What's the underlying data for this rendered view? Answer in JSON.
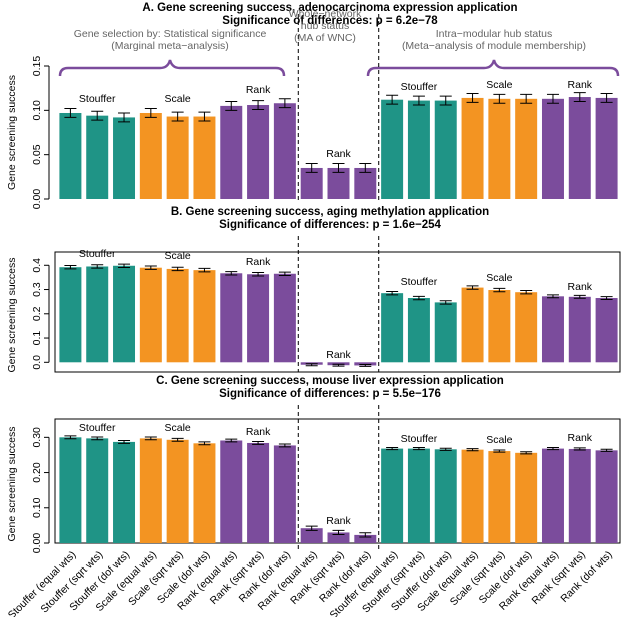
{
  "chart_data": [
    {
      "type": "bar",
      "title": "A. Gene screening success, adenocarcinoma expression application",
      "subtitle": "Significance of differences: p = 6.2e−78",
      "ylabel": "Gene screening success",
      "headers": [
        [
          "Gene selection by: Statistical significance",
          "(Marginal meta−analysis)"
        ],
        [
          "Whole−network",
          "hub status",
          "(MA of WNC)"
        ],
        [
          "Intra−modular hub status",
          "(Meta−analysis of module membership)"
        ]
      ],
      "annotations": [
        {
          "text": "Stouffer",
          "color": "#1f9486"
        },
        {
          "text": "Scale",
          "color": "#f39422"
        },
        {
          "text": "Rank",
          "color": "#7b4c9c"
        },
        {
          "text": "Rank",
          "color": "#7b4c9c"
        },
        {
          "text": "Stouffer",
          "color": "#1f9486"
        },
        {
          "text": "Scale",
          "color": "#f39422"
        },
        {
          "text": "Rank",
          "color": "#7b4c9c"
        }
      ],
      "values": [
        0.097,
        0.094,
        0.092,
        0.097,
        0.093,
        0.093,
        0.105,
        0.106,
        0.108,
        0.035,
        0.035,
        0.035,
        0.112,
        0.111,
        0.111,
        0.114,
        0.113,
        0.113,
        0.113,
        0.115,
        0.114
      ],
      "errors": [
        0.005,
        0.005,
        0.005,
        0.005,
        0.005,
        0.005,
        0.005,
        0.005,
        0.005,
        0.005,
        0.005,
        0.005,
        0.005,
        0.005,
        0.005,
        0.005,
        0.005,
        0.005,
        0.005,
        0.005,
        0.005
      ],
      "colors": [
        "#1f9486",
        "#1f9486",
        "#1f9486",
        "#f39422",
        "#f39422",
        "#f39422",
        "#7b4c9c",
        "#7b4c9c",
        "#7b4c9c",
        "#7b4c9c",
        "#7b4c9c",
        "#7b4c9c",
        "#1f9486",
        "#1f9486",
        "#1f9486",
        "#f39422",
        "#f39422",
        "#f39422",
        "#7b4c9c",
        "#7b4c9c",
        "#7b4c9c"
      ],
      "ylim": [
        0,
        0.15
      ],
      "yticks": [
        {
          "value": 0,
          "label": "0.00"
        },
        {
          "value": 0.05,
          "label": "0.05"
        },
        {
          "value": 0.1,
          "label": "0.10"
        },
        {
          "value": 0.15,
          "label": "0.15"
        }
      ]
    },
    {
      "type": "bar",
      "title": "B. Gene screening success, aging methylation application",
      "subtitle": "Significance of differences: p = 1.6e−254",
      "ylabel": "Gene screening success",
      "annotations": [
        {
          "text": "Stouffer",
          "color": "#1f9486"
        },
        {
          "text": "Scale",
          "color": "#f39422"
        },
        {
          "text": "Rank",
          "color": "#7b4c9c"
        },
        {
          "text": "Rank",
          "color": "#7b4c9c"
        },
        {
          "text": "Stouffer",
          "color": "#1f9486"
        },
        {
          "text": "Scale",
          "color": "#f39422"
        },
        {
          "text": "Rank",
          "color": "#7b4c9c"
        }
      ],
      "values": [
        0.392,
        0.395,
        0.398,
        0.39,
        0.385,
        0.38,
        0.367,
        0.363,
        0.365,
        -0.01,
        -0.012,
        -0.013,
        0.285,
        0.265,
        0.247,
        0.308,
        0.298,
        0.289,
        0.272,
        0.27,
        0.265
      ],
      "errors": [
        0.007,
        0.007,
        0.007,
        0.007,
        0.007,
        0.007,
        0.007,
        0.007,
        0.007,
        0.004,
        0.004,
        0.004,
        0.007,
        0.007,
        0.007,
        0.007,
        0.007,
        0.007,
        0.006,
        0.006,
        0.006
      ],
      "colors": [
        "#1f9486",
        "#1f9486",
        "#1f9486",
        "#f39422",
        "#f39422",
        "#f39422",
        "#7b4c9c",
        "#7b4c9c",
        "#7b4c9c",
        "#7b4c9c",
        "#7b4c9c",
        "#7b4c9c",
        "#1f9486",
        "#1f9486",
        "#1f9486",
        "#f39422",
        "#f39422",
        "#f39422",
        "#7b4c9c",
        "#7b4c9c",
        "#7b4c9c"
      ],
      "ylim": [
        -0.04,
        0.43
      ],
      "yticks": [
        {
          "value": 0,
          "label": "0.0"
        },
        {
          "value": 0.1,
          "label": "0.1"
        },
        {
          "value": 0.2,
          "label": "0.2"
        },
        {
          "value": 0.3,
          "label": "0.3"
        },
        {
          "value": 0.4,
          "label": "0.4"
        }
      ]
    },
    {
      "type": "bar",
      "title": "C. Gene screening success, mouse liver expression application",
      "subtitle": "Significance of differences: p = 5.5e−176",
      "ylabel": "Gene screening success",
      "annotations": [
        {
          "text": "Stouffer",
          "color": "#1f9486"
        },
        {
          "text": "Scale",
          "color": "#f39422"
        },
        {
          "text": "Rank",
          "color": "#7b4c9c"
        },
        {
          "text": "Rank",
          "color": "#7b4c9c"
        },
        {
          "text": "Stouffer",
          "color": "#1f9486"
        },
        {
          "text": "Scale",
          "color": "#f39422"
        },
        {
          "text": "Rank",
          "color": "#7b4c9c"
        }
      ],
      "categories": [
        "Stouffer (equal wts)",
        "Stouffer (sqrt wts)",
        "Stouffer (dof wts)",
        "Scale (equal wts)",
        "Scale (sqrt wts)",
        "Scale (dof wts)",
        "Rank (equal wts)",
        "Rank (sqrt wts)",
        "Rank (dof wts)",
        "Rank (equal wts)",
        "Rank (sqrt wts)",
        "Rank (dof wts)",
        "Stouffer (equal wts)",
        "Stouffer (sqrt wts)",
        "Stouffer (dof wts)",
        "Scale (equal wts)",
        "Scale (sqrt wts)",
        "Scale (dof wts)",
        "Rank (equal wts)",
        "Rank (sqrt wts)",
        "Rank (dof wts)"
      ],
      "values": [
        0.3,
        0.297,
        0.287,
        0.297,
        0.293,
        0.283,
        0.291,
        0.284,
        0.277,
        0.042,
        0.03,
        0.023,
        0.268,
        0.268,
        0.266,
        0.265,
        0.261,
        0.256,
        0.268,
        0.267,
        0.263
      ],
      "errors": [
        0.004,
        0.004,
        0.004,
        0.004,
        0.004,
        0.004,
        0.004,
        0.004,
        0.004,
        0.006,
        0.006,
        0.006,
        0.003,
        0.003,
        0.003,
        0.003,
        0.003,
        0.003,
        0.003,
        0.003,
        0.003
      ],
      "colors": [
        "#1f9486",
        "#1f9486",
        "#1f9486",
        "#f39422",
        "#f39422",
        "#f39422",
        "#7b4c9c",
        "#7b4c9c",
        "#7b4c9c",
        "#7b4c9c",
        "#7b4c9c",
        "#7b4c9c",
        "#1f9486",
        "#1f9486",
        "#1f9486",
        "#f39422",
        "#f39422",
        "#f39422",
        "#7b4c9c",
        "#7b4c9c",
        "#7b4c9c"
      ],
      "ylim": [
        0,
        0.335
      ],
      "yticks": [
        {
          "value": 0,
          "label": "0.00"
        },
        {
          "value": 0.1,
          "label": "0.10"
        },
        {
          "value": 0.2,
          "label": "0.20"
        },
        {
          "value": 0.3,
          "label": "0.30"
        }
      ]
    }
  ]
}
